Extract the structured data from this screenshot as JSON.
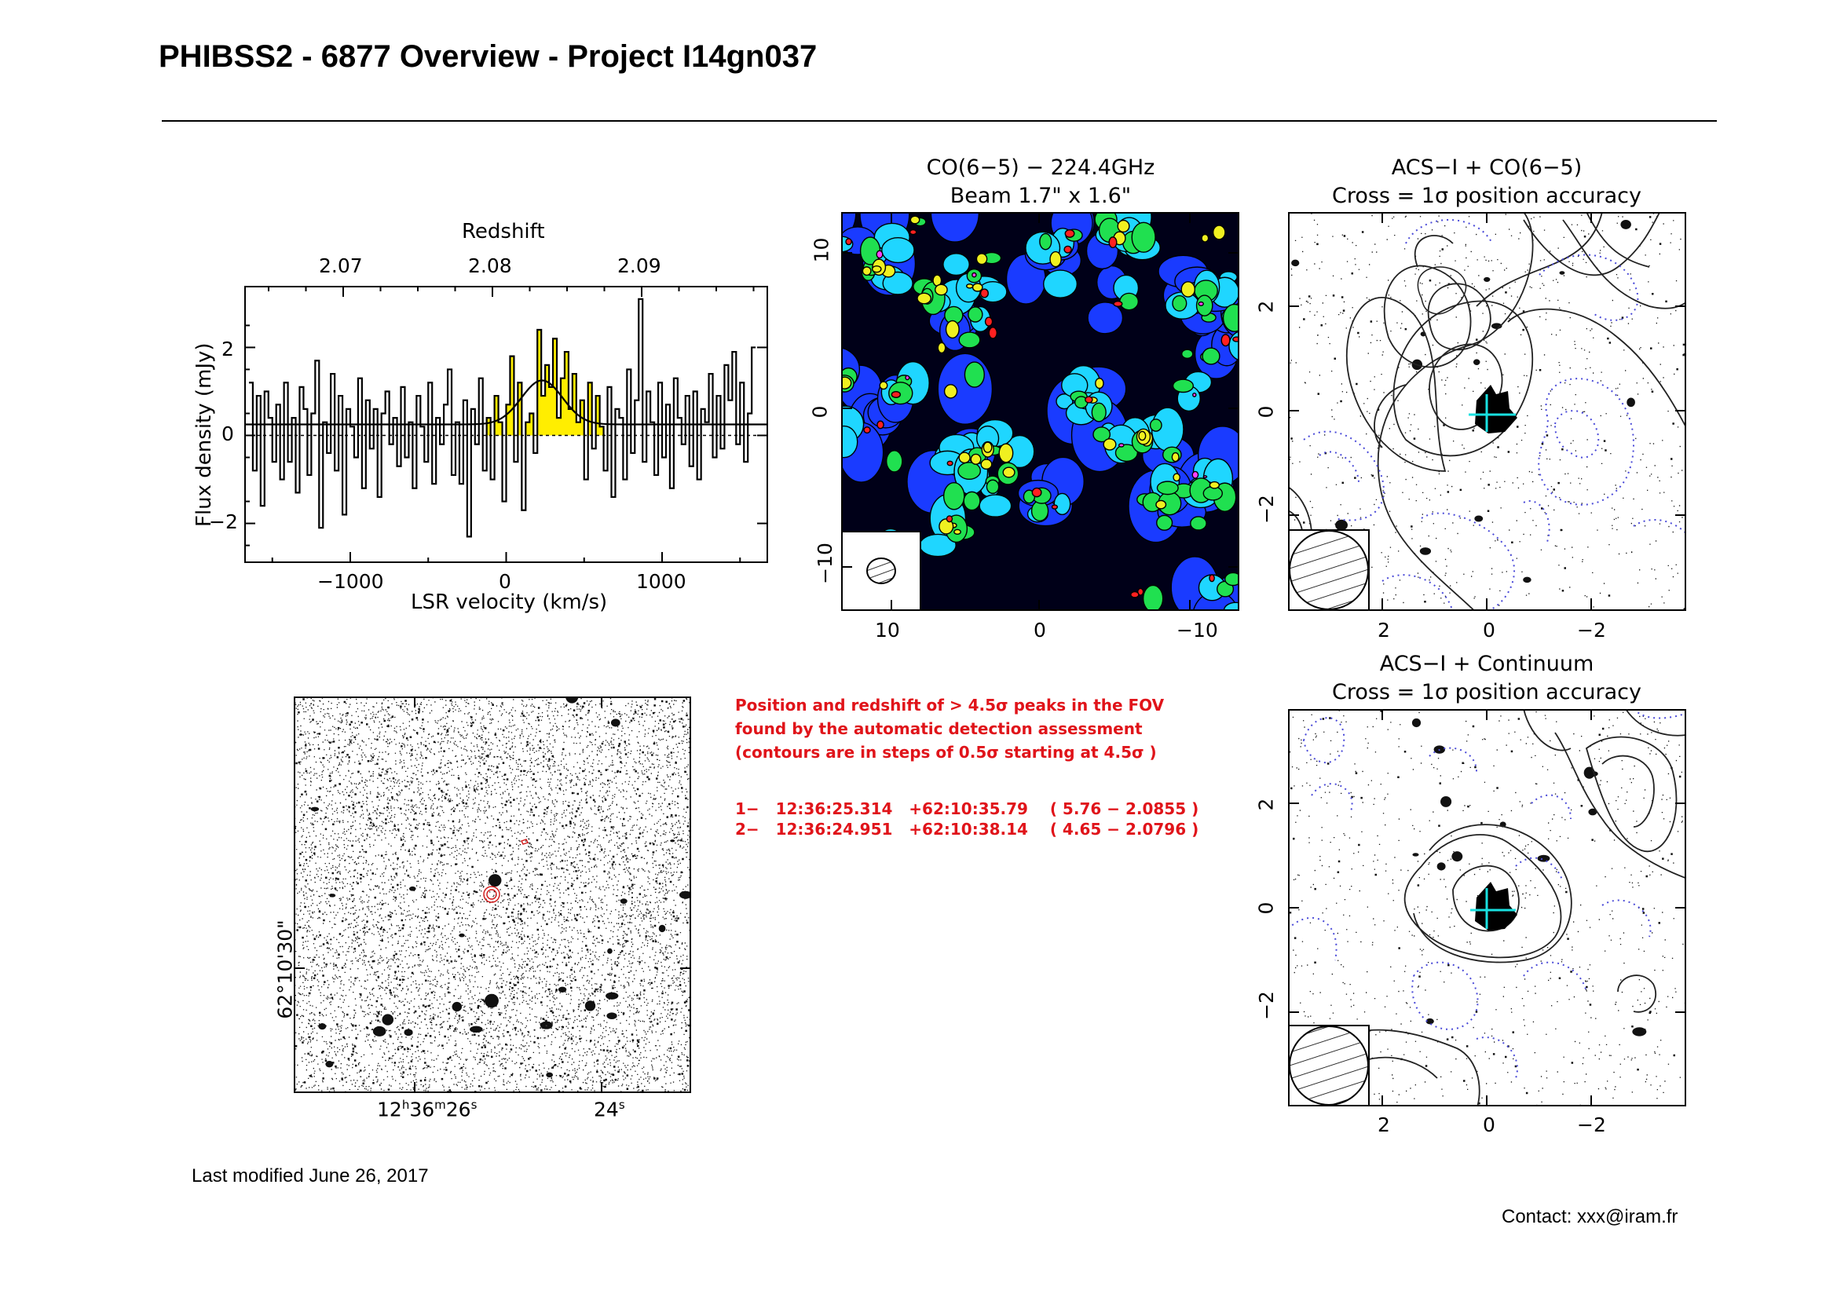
{
  "header": {
    "title": "PHIBSS2 - 6877 Overview - Project I14gn037"
  },
  "spectrum": {
    "top_axis_title": "Redshift",
    "top_ticks": [
      "2.07",
      "2.08",
      "2.09"
    ],
    "xlabel": "LSR velocity (km/s)",
    "ylabel": "Flux density (mJy)",
    "x_ticks": [
      "−1000",
      "0",
      "1000"
    ],
    "y_ticks": [
      "2",
      "0",
      "−2"
    ]
  },
  "comap": {
    "title_line1": "CO(6−5) − 224.4GHz",
    "title_line2": "Beam 1.7\" x 1.6\"",
    "x_ticks": [
      "10",
      "0",
      "−10"
    ],
    "y_ticks": [
      "10",
      "0",
      "−10"
    ]
  },
  "acs_co": {
    "title_line1": "ACS−I + CO(6−5)",
    "title_line2": "Cross = 1σ position accuracy",
    "x_ticks": [
      "2",
      "0",
      "−2"
    ],
    "y_ticks": [
      "2",
      "0",
      "−2"
    ]
  },
  "acs_cont": {
    "title_line1": "ACS−I + Continuum",
    "title_line2": "Cross = 1σ position accuracy",
    "x_ticks": [
      "2",
      "0",
      "−2"
    ],
    "y_ticks": [
      "2",
      "0",
      "−2"
    ]
  },
  "field": {
    "ra_tick1_h": "12",
    "ra_tick1_hs": "h",
    "ra_tick1_m": "36",
    "ra_tick1_ms": "m",
    "ra_tick1_s": "26",
    "ra_tick1_ss": "s",
    "ra_tick2_s": "24",
    "ra_tick2_ss": "s",
    "dec_tick": "62°10'30\""
  },
  "notes": {
    "text_line1": "Position and redshift of > 4.5σ peaks in the FOV",
    "text_line2": "found by the automatic detection assessment",
    "text_line3": "(contours are in steps of 0.5σ starting at 4.5σ )"
  },
  "peaks": [
    {
      "text": "1−   12:36:25.314   +62:10:35.79    ( 5.76 − 2.0855 )"
    },
    {
      "text": "2−   12:36:24.951   +62:10:38.14    ( 4.65 − 2.0796 )"
    }
  ],
  "footer": {
    "last_modified": "Last modified June 26, 2017",
    "contact": "Contact: xxx@iram.fr"
  },
  "colors": {
    "annotation_red": "#e0141a",
    "fit_fill": "#ffee00",
    "cross_cyan": "#19e0e0",
    "dotted_blue": "#4a4ad8"
  },
  "chart_data": [
    {
      "type": "line",
      "title": "",
      "xlabel": "LSR velocity (km/s)",
      "ylabel": "Flux density (mJy)",
      "xlim": [
        -1680,
        1680
      ],
      "ylim": [
        -2.9,
        3.4
      ],
      "secondary_x": {
        "label": "Redshift",
        "ticks": [
          2.07,
          2.08,
          2.09
        ]
      },
      "channel_width": 25,
      "x_start": -1650,
      "y": [
        1.2,
        -0.8,
        0.9,
        -1.6,
        1.0,
        0.4,
        -0.6,
        0.7,
        -1.0,
        1.2,
        -0.6,
        0.4,
        -1.3,
        1.1,
        0.6,
        -0.9,
        0.5,
        1.7,
        -2.1,
        0.3,
        -0.4,
        1.4,
        -0.8,
        0.9,
        -1.8,
        0.6,
        0.2,
        -0.5,
        1.3,
        -1.2,
        0.8,
        -0.3,
        0.6,
        -1.4,
        0.5,
        1.0,
        -0.2,
        0.4,
        -0.7,
        1.1,
        -0.5,
        0.3,
        -1.2,
        0.9,
        0.2,
        -0.6,
        1.2,
        -1.1,
        0.4,
        -0.2,
        0.7,
        1.5,
        -0.9,
        0.3,
        -1.1,
        0.8,
        -2.3,
        0.6,
        -0.2,
        1.3,
        -0.8,
        0.4,
        -1.0,
        0.9,
        0.3,
        -1.5,
        0.7,
        1.8,
        -0.6,
        1.2,
        -1.7,
        0.3,
        0.5,
        -0.4,
        2.4,
        0.9,
        1.6,
        1.1,
        2.2,
        0.4,
        1.3,
        1.9,
        0.6,
        1.4,
        0.3,
        0.8,
        -1.0,
        1.2,
        -0.3,
        0.9,
        0.2,
        -0.8,
        1.1,
        -1.4,
        0.6,
        0.4,
        -1.0,
        1.5,
        -0.4,
        0.8,
        3.1,
        -0.6,
        1.0,
        0.3,
        -0.9,
        1.2,
        -0.5,
        0.7,
        -1.2,
        1.3,
        0.4,
        -0.2,
        0.9,
        -0.7,
        1.0,
        -1.0,
        0.6,
        0.3,
        1.4,
        -0.5,
        0.9,
        -0.3,
        1.6,
        0.8,
        1.9,
        -0.2,
        1.2,
        -0.6,
        0.5,
        2.0
      ],
      "model": {
        "type": "gaussian",
        "baseline": 0.25,
        "center": 230,
        "fwhm": 310,
        "peak_above_baseline": 1.0
      }
    }
  ]
}
